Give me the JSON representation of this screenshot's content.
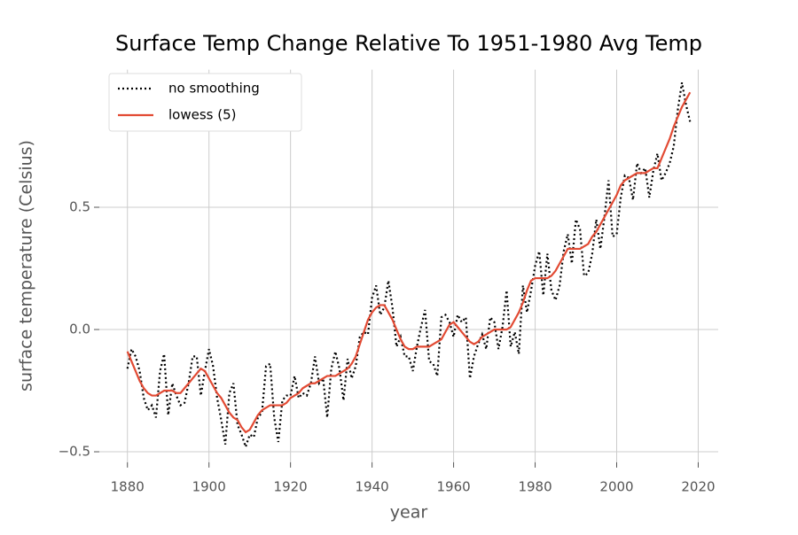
{
  "chart_data": {
    "type": "line",
    "title": "Surface Temp Change Relative To 1951-1980 Avg Temp",
    "xlabel": "year",
    "ylabel": "surface temperature (Celsius)",
    "x": [
      1880,
      1881,
      1882,
      1883,
      1884,
      1885,
      1886,
      1887,
      1888,
      1889,
      1890,
      1891,
      1892,
      1893,
      1894,
      1895,
      1896,
      1897,
      1898,
      1899,
      1900,
      1901,
      1902,
      1903,
      1904,
      1905,
      1906,
      1907,
      1908,
      1909,
      1910,
      1911,
      1912,
      1913,
      1914,
      1915,
      1916,
      1917,
      1918,
      1919,
      1920,
      1921,
      1922,
      1923,
      1924,
      1925,
      1926,
      1927,
      1928,
      1929,
      1930,
      1931,
      1932,
      1933,
      1934,
      1935,
      1936,
      1937,
      1938,
      1939,
      1940,
      1941,
      1942,
      1943,
      1944,
      1945,
      1946,
      1947,
      1948,
      1949,
      1950,
      1951,
      1952,
      1953,
      1954,
      1955,
      1956,
      1957,
      1958,
      1959,
      1960,
      1961,
      1962,
      1963,
      1964,
      1965,
      1966,
      1967,
      1968,
      1969,
      1970,
      1971,
      1972,
      1973,
      1974,
      1975,
      1976,
      1977,
      1978,
      1979,
      1980,
      1981,
      1982,
      1983,
      1984,
      1985,
      1986,
      1987,
      1988,
      1989,
      1990,
      1991,
      1992,
      1993,
      1994,
      1995,
      1996,
      1997,
      1998,
      1999,
      2000,
      2001,
      2002,
      2003,
      2004,
      2005,
      2006,
      2007,
      2008,
      2009,
      2010,
      2011,
      2012,
      2013,
      2014,
      2015,
      2016,
      2017,
      2018
    ],
    "series": [
      {
        "name": "no smoothing",
        "color": "#000000",
        "linestyle": "dotted",
        "values": [
          -0.16,
          -0.08,
          -0.11,
          -0.17,
          -0.28,
          -0.33,
          -0.31,
          -0.36,
          -0.17,
          -0.1,
          -0.35,
          -0.22,
          -0.27,
          -0.31,
          -0.3,
          -0.22,
          -0.11,
          -0.11,
          -0.27,
          -0.17,
          -0.08,
          -0.15,
          -0.28,
          -0.37,
          -0.47,
          -0.26,
          -0.22,
          -0.39,
          -0.43,
          -0.48,
          -0.43,
          -0.44,
          -0.36,
          -0.34,
          -0.15,
          -0.14,
          -0.36,
          -0.46,
          -0.29,
          -0.27,
          -0.27,
          -0.19,
          -0.28,
          -0.26,
          -0.27,
          -0.22,
          -0.11,
          -0.22,
          -0.2,
          -0.36,
          -0.16,
          -0.09,
          -0.16,
          -0.29,
          -0.12,
          -0.2,
          -0.15,
          -0.03,
          -0.01,
          -0.02,
          0.13,
          0.18,
          0.06,
          0.09,
          0.2,
          0.09,
          -0.07,
          -0.03,
          -0.11,
          -0.11,
          -0.17,
          -0.07,
          0.01,
          0.08,
          -0.13,
          -0.14,
          -0.19,
          0.05,
          0.06,
          0.03,
          -0.03,
          0.06,
          0.03,
          0.05,
          -0.2,
          -0.11,
          -0.06,
          -0.02,
          -0.08,
          0.05,
          0.03,
          -0.08,
          0.01,
          0.16,
          -0.07,
          -0.01,
          -0.1,
          0.18,
          0.07,
          0.16,
          0.26,
          0.32,
          0.14,
          0.31,
          0.16,
          0.12,
          0.18,
          0.32,
          0.39,
          0.27,
          0.45,
          0.41,
          0.22,
          0.23,
          0.31,
          0.45,
          0.33,
          0.46,
          0.61,
          0.38,
          0.39,
          0.54,
          0.63,
          0.62,
          0.53,
          0.68,
          0.64,
          0.66,
          0.54,
          0.65,
          0.72,
          0.61,
          0.64,
          0.68,
          0.75,
          0.9,
          1.01,
          0.92,
          0.85
        ]
      },
      {
        "name": "lowess (5)",
        "color": "#e24a33",
        "linestyle": "solid",
        "values": [
          -0.09,
          -0.13,
          -0.17,
          -0.21,
          -0.24,
          -0.26,
          -0.27,
          -0.27,
          -0.26,
          -0.25,
          -0.25,
          -0.25,
          -0.26,
          -0.26,
          -0.24,
          -0.22,
          -0.2,
          -0.18,
          -0.16,
          -0.17,
          -0.2,
          -0.23,
          -0.26,
          -0.28,
          -0.31,
          -0.34,
          -0.36,
          -0.37,
          -0.4,
          -0.42,
          -0.41,
          -0.38,
          -0.35,
          -0.33,
          -0.32,
          -0.31,
          -0.31,
          -0.31,
          -0.31,
          -0.3,
          -0.28,
          -0.27,
          -0.26,
          -0.24,
          -0.23,
          -0.22,
          -0.22,
          -0.21,
          -0.2,
          -0.19,
          -0.19,
          -0.19,
          -0.18,
          -0.17,
          -0.16,
          -0.14,
          -0.11,
          -0.06,
          -0.01,
          0.04,
          0.07,
          0.09,
          0.1,
          0.1,
          0.07,
          0.04,
          0.0,
          -0.04,
          -0.07,
          -0.08,
          -0.08,
          -0.07,
          -0.07,
          -0.07,
          -0.07,
          -0.06,
          -0.05,
          -0.04,
          -0.01,
          0.02,
          0.03,
          0.01,
          -0.01,
          -0.03,
          -0.05,
          -0.06,
          -0.05,
          -0.03,
          -0.02,
          -0.01,
          0.0,
          0.0,
          0.0,
          0.0,
          0.01,
          0.04,
          0.07,
          0.11,
          0.16,
          0.2,
          0.21,
          0.21,
          0.21,
          0.21,
          0.22,
          0.24,
          0.27,
          0.3,
          0.33,
          0.33,
          0.33,
          0.33,
          0.34,
          0.35,
          0.38,
          0.4,
          0.43,
          0.46,
          0.49,
          0.52,
          0.55,
          0.59,
          0.61,
          0.62,
          0.63,
          0.64,
          0.64,
          0.64,
          0.65,
          0.66,
          0.66,
          0.7,
          0.74,
          0.78,
          0.83,
          0.87,
          0.91,
          0.94,
          0.97
        ]
      }
    ],
    "xlim": [
      1873.1,
      2024.9
    ],
    "ylim": [
      -0.543,
      1.063
    ],
    "xticks": [
      1880,
      1900,
      1920,
      1940,
      1960,
      1980,
      2000,
      2020
    ],
    "yticks": [
      {
        "value": -0.5,
        "label": "−0.5"
      },
      {
        "value": 0,
        "label": "0.0"
      },
      {
        "value": 0.5,
        "label": "0.5"
      }
    ],
    "grid": true,
    "legend": "upper left"
  }
}
